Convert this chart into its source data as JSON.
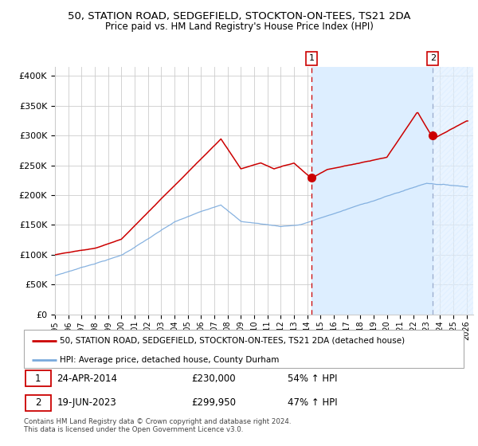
{
  "title1": "50, STATION ROAD, SEDGEFIELD, STOCKTON-ON-TEES, TS21 2DA",
  "title2": "Price paid vs. HM Land Registry's House Price Index (HPI)",
  "ylabel_ticks": [
    "£0",
    "£50K",
    "£100K",
    "£150K",
    "£200K",
    "£250K",
    "£300K",
    "£350K",
    "£400K"
  ],
  "ytick_vals": [
    0,
    50000,
    100000,
    150000,
    200000,
    250000,
    300000,
    350000,
    400000
  ],
  "xlim_start": 1995.0,
  "xlim_end": 2026.5,
  "ylim_min": 0,
  "ylim_max": 415000,
  "purchase1_date": 2014.31,
  "purchase1_price": 230000,
  "purchase2_date": 2023.46,
  "purchase2_price": 299950,
  "legend_red": "50, STATION ROAD, SEDGEFIELD, STOCKTON-ON-TEES, TS21 2DA (detached house)",
  "legend_blue": "HPI: Average price, detached house, County Durham",
  "sale1_date": "24-APR-2014",
  "sale1_price": "£230,000",
  "sale1_hpi": "54% ↑ HPI",
  "sale2_date": "19-JUN-2023",
  "sale2_price": "£299,950",
  "sale2_hpi": "47% ↑ HPI",
  "footnote": "Contains HM Land Registry data © Crown copyright and database right 2024.\nThis data is licensed under the Open Government Licence v3.0.",
  "red_color": "#cc0000",
  "blue_color": "#7aaadd",
  "shaded_color": "#ddeeff",
  "grid_color": "#cccccc",
  "background_color": "#ffffff",
  "hatch_region_start": 2023.46,
  "hatch_region_end": 2026.5
}
